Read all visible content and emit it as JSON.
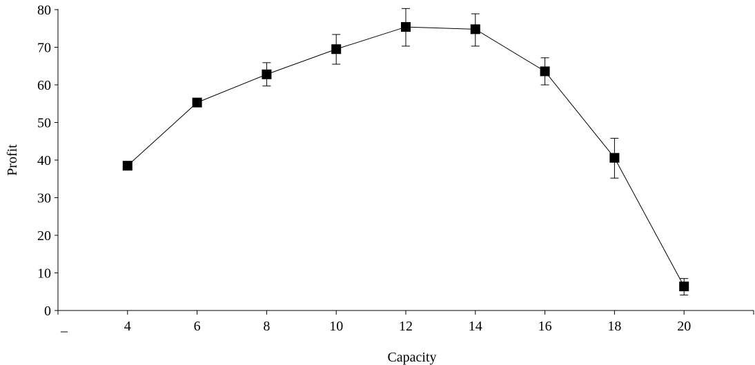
{
  "chart_data": {
    "type": "line",
    "title": "",
    "xlabel": "Capacity",
    "ylabel": "Profit",
    "ylim": [
      0,
      80
    ],
    "y_ticks": [
      0,
      10,
      20,
      30,
      40,
      50,
      60,
      70,
      80
    ],
    "categories": [
      "4",
      "6",
      "8",
      "10",
      "12",
      "14",
      "16",
      "18",
      "20"
    ],
    "x_axis_extra_label": "_",
    "grid": false,
    "legend": "none",
    "marker": "square",
    "line_color": "#000000",
    "series": [
      {
        "values": [
          38.5,
          55.3,
          62.8,
          69.5,
          75.4,
          74.8,
          63.6,
          40.6,
          6.4
        ],
        "error_upper": [
          38.7,
          55.5,
          65.9,
          73.4,
          80.3,
          78.9,
          67.2,
          45.8,
          8.5
        ],
        "error_lower": [
          38.3,
          55.1,
          59.7,
          65.5,
          70.3,
          70.3,
          60.0,
          35.2,
          4.1
        ]
      }
    ]
  }
}
